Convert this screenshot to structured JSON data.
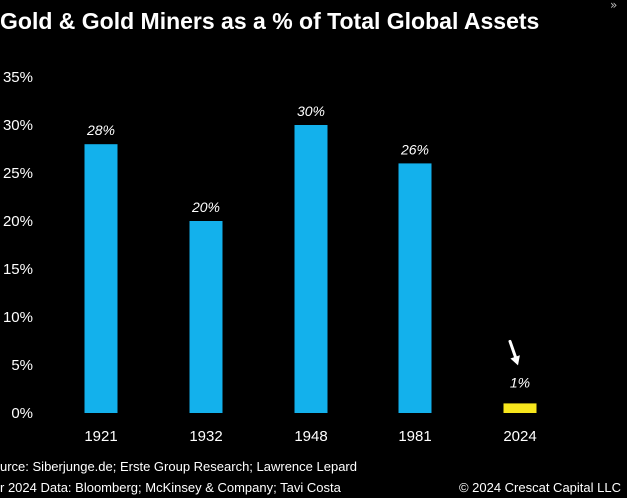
{
  "title": "Gold & Gold Miners as a % of Total Global Assets",
  "corner_glyph": "»",
  "colors": {
    "background": "#000000",
    "bar": "#13b1ec",
    "highlight_bar": "#f7e61c",
    "text": "#ffffff",
    "arrow": "#ffffff"
  },
  "chart_data": {
    "type": "bar",
    "title": "Gold & Gold Miners as a % of Total Global Assets",
    "categories": [
      "1921",
      "1932",
      "1948",
      "1981",
      "2024"
    ],
    "values": [
      28,
      20,
      30,
      26,
      1
    ],
    "data_labels": [
      "28%",
      "20%",
      "30%",
      "26%",
      "1%"
    ],
    "highlight_index": 4,
    "highlight_marker": "down-arrow",
    "ylim": [
      0,
      35
    ],
    "yticks": [
      0,
      5,
      10,
      15,
      20,
      25,
      30,
      35
    ],
    "ytick_labels": [
      "0%",
      "5%",
      "10%",
      "15%",
      "20%",
      "25%",
      "30%",
      "35%"
    ],
    "xlabel": "",
    "ylabel": "",
    "grid": false,
    "legend": "none"
  },
  "footer": {
    "source_line1": "urce: Siberjunge.de; Erste Group Research; Lawrence Lepard",
    "source_line2": "r 2024 Data: Bloomberg; McKinsey & Company; Tavi Costa",
    "copyright": "© 2024 Crescat Capital LLC"
  }
}
